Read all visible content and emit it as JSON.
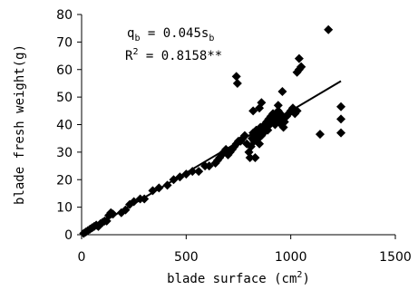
{
  "chart_data": {
    "type": "scatter",
    "title": "",
    "xlabel": "blade surface (cm²)",
    "xlabel_parts": {
      "main": "blade surface (cm",
      "sup": "2",
      "end": ")"
    },
    "ylabel": "blade fresh weight(g)",
    "xlim": [
      0,
      1500
    ],
    "ylim": [
      0,
      80
    ],
    "xticks": [
      0,
      500,
      1000,
      1500
    ],
    "yticks": [
      0,
      10,
      20,
      30,
      40,
      50,
      60,
      70,
      80
    ],
    "grid": false,
    "legend": "none",
    "marker": "diamond",
    "marker_color": "#000000",
    "annotations": {
      "equation": {
        "lhs": "q",
        "lhs_sub": "b",
        "mid": " = 0.045s",
        "rhs_sub": "b"
      },
      "r2": {
        "text": "R",
        "sup": "2",
        "rest": " = 0.8158**"
      }
    },
    "trendline": {
      "x": [
        0,
        1240
      ],
      "y": [
        0,
        55.8
      ]
    },
    "series": [
      {
        "x": [
          10,
          20,
          30,
          40,
          50,
          60,
          70,
          80,
          90,
          100,
          110,
          120,
          130,
          140,
          150,
          190,
          210,
          230,
          250,
          280,
          300,
          340,
          370,
          410,
          440,
          470,
          500,
          530,
          560,
          590,
          610,
          640,
          650,
          660,
          670,
          680,
          690,
          700,
          710,
          720,
          730,
          740,
          750,
          760,
          770,
          780,
          790,
          800,
          805,
          810,
          815,
          820,
          825,
          830,
          835,
          840,
          845,
          850,
          855,
          860,
          865,
          870,
          875,
          880,
          885,
          890,
          895,
          900,
          905,
          910,
          915,
          920,
          925,
          930,
          935,
          940,
          945,
          950,
          955,
          960,
          965,
          970,
          980,
          990,
          1000,
          1010,
          1020,
          1030,
          1040,
          1050,
          740,
          745,
          1180,
          1040,
          1030,
          1050,
          960,
          860,
          850,
          940,
          1140,
          1240,
          1240,
          1240,
          820,
          830
        ],
        "y": [
          0.5,
          1,
          1.5,
          2,
          2.5,
          3,
          3.5,
          3,
          4,
          4.5,
          5,
          5,
          7,
          8,
          7.5,
          8,
          9,
          11,
          12,
          13,
          13,
          16,
          17,
          18,
          20,
          21,
          22,
          23,
          23,
          25,
          25,
          26,
          27,
          28,
          29,
          30,
          31,
          29,
          30,
          31,
          32,
          33,
          34,
          34,
          35,
          36,
          33,
          30,
          28,
          32,
          35,
          37,
          34,
          36,
          38,
          37,
          35,
          33,
          39,
          36,
          38,
          37,
          40,
          39,
          41,
          38,
          42,
          40,
          43,
          41,
          44,
          42,
          40,
          43,
          41,
          45,
          42,
          44,
          40,
          42,
          39,
          41,
          43,
          44,
          45,
          46,
          44,
          45,
          60,
          61,
          57.5,
          55,
          74.5,
          64,
          59,
          61,
          52,
          48,
          46,
          47,
          36.5,
          46.5,
          42,
          37,
          45,
          28
        ]
      }
    ]
  }
}
